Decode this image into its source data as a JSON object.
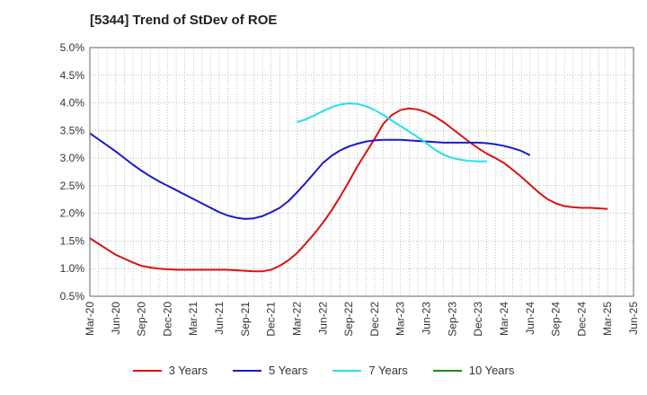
{
  "chart_data": {
    "type": "line",
    "title": "[5344]  Trend of StDev of ROE",
    "xlabel": "",
    "ylabel": "",
    "ylim": [
      0.005,
      0.05
    ],
    "y_ticks": [
      "0.5%",
      "1.0%",
      "1.5%",
      "2.0%",
      "2.5%",
      "3.0%",
      "3.5%",
      "4.0%",
      "4.5%",
      "5.0%"
    ],
    "y_tick_values": [
      0.005,
      0.01,
      0.015,
      0.02,
      0.025,
      0.03,
      0.035,
      0.04,
      0.045,
      0.05
    ],
    "x_tick_labels": [
      "Mar-20",
      "Jun-20",
      "Sep-20",
      "Dec-20",
      "Mar-21",
      "Jun-21",
      "Sep-21",
      "Dec-21",
      "Mar-22",
      "Jun-22",
      "Sep-22",
      "Dec-22",
      "Mar-23",
      "Jun-23",
      "Sep-23",
      "Dec-23",
      "Mar-24",
      "Jun-24",
      "Sep-24",
      "Dec-24",
      "Mar-25",
      "Jun-25"
    ],
    "grid": true,
    "legend_position": "bottom",
    "series": [
      {
        "name": "3 Years",
        "color": "#dd1111",
        "start_index": 0,
        "values": [
          0.0155,
          0.0145,
          0.0135,
          0.0125,
          0.0118,
          0.0111,
          0.0105,
          0.0102,
          0.01,
          0.0099,
          0.0098,
          0.0098,
          0.0098,
          0.0098,
          0.0098,
          0.0098,
          0.0098,
          0.0097,
          0.0096,
          0.0095,
          0.0095,
          0.0098,
          0.0105,
          0.0115,
          0.0128,
          0.0145,
          0.0163,
          0.0183,
          0.0205,
          0.023,
          0.0257,
          0.0285,
          0.031,
          0.0335,
          0.0362,
          0.0378,
          0.0387,
          0.039,
          0.0388,
          0.0383,
          0.0375,
          0.0365,
          0.0353,
          0.0341,
          0.0329,
          0.0318,
          0.0308,
          0.03,
          0.0291,
          0.0279,
          0.0266,
          0.0252,
          0.0238,
          0.0226,
          0.0218,
          0.0213,
          0.0211,
          0.021,
          0.021,
          0.0209,
          0.0208
        ]
      },
      {
        "name": "5 Years",
        "color": "#1a1acc",
        "start_index": 0,
        "values": [
          0.0345,
          0.0334,
          0.0323,
          0.0312,
          0.03,
          0.0288,
          0.0277,
          0.0267,
          0.0258,
          0.025,
          0.0242,
          0.0234,
          0.0226,
          0.0218,
          0.021,
          0.0202,
          0.0196,
          0.0192,
          0.019,
          0.0191,
          0.0195,
          0.0202,
          0.021,
          0.0222,
          0.0238,
          0.0255,
          0.0273,
          0.0291,
          0.0304,
          0.0314,
          0.0321,
          0.0326,
          0.033,
          0.0332,
          0.0333,
          0.0333,
          0.0333,
          0.0332,
          0.0331,
          0.033,
          0.0329,
          0.0328,
          0.0328,
          0.0328,
          0.0328,
          0.0328,
          0.0327,
          0.0325,
          0.0322,
          0.0318,
          0.0313,
          0.0305
        ],
        "x_indices": [
          0,
          1,
          2,
          3,
          4,
          5,
          6,
          7,
          8,
          9,
          10,
          11,
          12,
          13,
          14,
          15,
          16,
          17,
          18,
          19,
          20,
          21,
          22,
          23,
          24,
          25,
          26,
          27,
          28,
          29,
          30,
          31,
          32,
          33,
          34,
          35,
          36,
          37,
          38,
          39,
          40,
          41,
          42,
          43,
          44,
          45,
          46,
          47,
          48,
          49,
          50,
          51
        ]
      },
      {
        "name": "7 Years",
        "color": "#22e0e8",
        "start_index": 24,
        "values": [
          0.0365,
          0.037,
          0.0377,
          0.0385,
          0.0392,
          0.0397,
          0.0399,
          0.0398,
          0.0394,
          0.0387,
          0.0378,
          0.0368,
          0.0358,
          0.0348,
          0.0338,
          0.0327,
          0.0315,
          0.0306,
          0.03,
          0.0297,
          0.0295,
          0.0294,
          0.0294
        ]
      },
      {
        "name": "10 Years",
        "color": "#1a8a1a",
        "start_index": 0,
        "values": []
      }
    ]
  }
}
